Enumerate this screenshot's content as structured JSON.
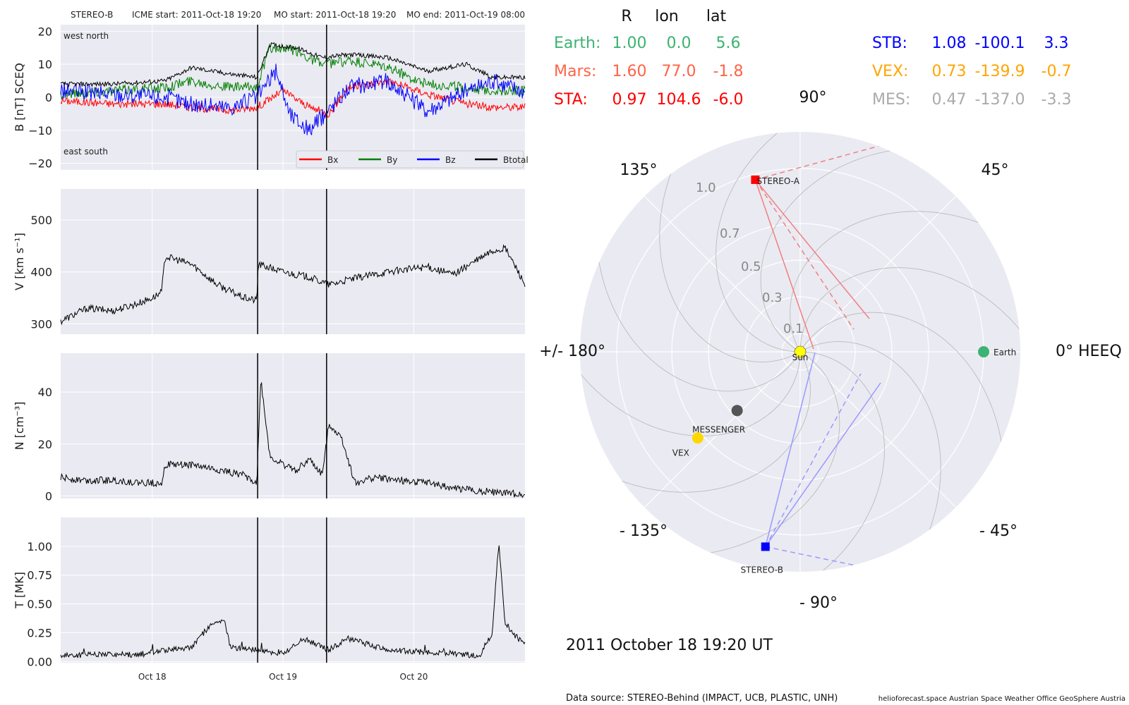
{
  "colors": {
    "panel_bg": "#EAEAF2",
    "grid": "#FFFFFF",
    "polar_grid": "#BBBBBB",
    "bx": "#FF0000",
    "by": "#008000",
    "bz": "#0000FF",
    "btotal": "#000000",
    "earth": "#3CB371",
    "mars": "#FF6347",
    "sta": "#FF0000",
    "stb": "#0000FF",
    "vex": "#FFA500",
    "vex_dot": "#FFD700",
    "mes": "#AAAAAA",
    "mes_dot": "#555555",
    "sun": "#FFFF00"
  },
  "header": {
    "spacecraft": "STEREO-B",
    "icme_start": "ICME start: 2011-Oct-18 19:20",
    "mo_start": "MO start: 2011-Oct-18 19:20",
    "mo_end": "MO end: 2011-Oct-19 08:00"
  },
  "positions_table": {
    "headers": [
      "R",
      "lon",
      "lat"
    ],
    "left_rows": [
      {
        "name": "Earth:",
        "R": "1.00",
        "lon": "0.0",
        "lat": "5.6",
        "color": "#3CB371"
      },
      {
        "name": "Mars:",
        "R": "1.60",
        "lon": "77.0",
        "lat": "-1.8",
        "color": "#FF6347"
      },
      {
        "name": "STA:",
        "R": "0.97",
        "lon": "104.6",
        "lat": "-6.0",
        "color": "#FF0000"
      }
    ],
    "right_rows": [
      {
        "name": "STB:",
        "R": "1.08",
        "lon": "-100.1",
        "lat": "3.3",
        "color": "#0000FF"
      },
      {
        "name": "VEX:",
        "R": "0.73",
        "lon": "-139.9",
        "lat": "-0.7",
        "color": "#FFA500"
      },
      {
        "name": "MES:",
        "R": "0.47",
        "lon": "-137.0",
        "lat": "-3.3",
        "color": "#AAAAAA"
      }
    ]
  },
  "chart_data": [
    {
      "type": "line",
      "ylabel": "B [nT] SCEQ",
      "ylim": [
        -22,
        22
      ],
      "yticks": [
        "20",
        "10",
        "0",
        "−10",
        "−20"
      ],
      "ytick_values": [
        20,
        10,
        0,
        -10,
        -20
      ],
      "x_range_days": [
        17.3,
        20.85
      ],
      "xticks": [
        "Oct 18",
        "Oct 19",
        "Oct 20"
      ],
      "xtick_values": [
        18.0,
        19.0,
        20.0
      ],
      "vlines_days": [
        18.806,
        19.333
      ],
      "corner_labels": [
        "west north",
        "east south"
      ],
      "legend": [
        "Bx",
        "By",
        "Bz",
        "Btotal"
      ],
      "legend_position": "lower right",
      "grid": true,
      "series": [
        {
          "name": "Bx",
          "x": [
            17.3,
            17.7,
            18.1,
            18.3,
            18.6,
            18.8,
            19.0,
            19.2,
            19.35,
            19.5,
            19.8,
            20.1,
            20.4,
            20.6,
            20.85
          ],
          "values": [
            -1,
            -2,
            -2,
            -3,
            -4,
            -3,
            2,
            -3,
            -5,
            3,
            5,
            1,
            -2,
            -3,
            -3
          ]
        },
        {
          "name": "By",
          "x": [
            17.3,
            17.7,
            18.1,
            18.3,
            18.6,
            18.8,
            18.9,
            19.1,
            19.3,
            19.5,
            19.8,
            20.1,
            20.4,
            20.6,
            20.85
          ],
          "values": [
            1,
            2,
            3,
            5,
            3,
            3,
            15,
            14,
            10,
            11,
            9,
            4,
            3,
            2,
            2
          ]
        },
        {
          "name": "Bz",
          "x": [
            17.3,
            17.7,
            18.1,
            18.3,
            18.6,
            18.8,
            18.95,
            19.05,
            19.2,
            19.3,
            19.5,
            19.8,
            20.1,
            20.4,
            20.6,
            20.85
          ],
          "values": [
            2,
            1,
            0,
            -2,
            -3,
            0,
            8,
            -5,
            -10,
            -6,
            3,
            5,
            -4,
            2,
            5,
            2
          ]
        },
        {
          "name": "Btotal",
          "x": [
            17.3,
            17.7,
            18.1,
            18.3,
            18.6,
            18.8,
            18.9,
            19.1,
            19.3,
            19.5,
            19.8,
            20.1,
            20.4,
            20.6,
            20.85
          ],
          "values": [
            4,
            4,
            5,
            9,
            7,
            6,
            16,
            15,
            12,
            13,
            12,
            8,
            10,
            6,
            6
          ]
        }
      ]
    },
    {
      "type": "line",
      "ylabel": "V [km s⁻¹]",
      "ylim": [
        280,
        560
      ],
      "yticks": [
        "500",
        "400",
        "300"
      ],
      "ytick_values": [
        500,
        400,
        300
      ],
      "x_range_days": [
        17.3,
        20.85
      ],
      "xticks": [
        "Oct 18",
        "Oct 19",
        "Oct 20"
      ],
      "xtick_values": [
        18.0,
        19.0,
        20.0
      ],
      "vlines_days": [
        18.806,
        19.333
      ],
      "grid": true,
      "series": [
        {
          "name": "V",
          "x": [
            17.3,
            17.5,
            17.7,
            17.9,
            18.0,
            18.07,
            18.1,
            18.3,
            18.5,
            18.7,
            18.8,
            18.81,
            19.0,
            19.2,
            19.35,
            19.5,
            19.8,
            20.1,
            20.3,
            20.4,
            20.6,
            20.7,
            20.8,
            20.85
          ],
          "values": [
            305,
            330,
            325,
            340,
            350,
            360,
            430,
            415,
            375,
            350,
            345,
            415,
            400,
            390,
            375,
            385,
            400,
            410,
            395,
            410,
            440,
            445,
            400,
            375
          ]
        }
      ]
    },
    {
      "type": "line",
      "ylabel": "N [cm⁻³]",
      "ylim": [
        -1,
        55
      ],
      "yticks": [
        "40",
        "20",
        "0"
      ],
      "ytick_values": [
        40,
        20,
        0
      ],
      "x_range_days": [
        17.3,
        20.85
      ],
      "xticks": [
        "Oct 18",
        "Oct 19",
        "Oct 20"
      ],
      "xtick_values": [
        18.0,
        19.0,
        20.0
      ],
      "vlines_days": [
        18.806,
        19.333
      ],
      "grid": true,
      "series": [
        {
          "name": "N",
          "x": [
            17.3,
            17.5,
            17.7,
            17.9,
            18.07,
            18.1,
            18.3,
            18.5,
            18.7,
            18.8,
            18.83,
            18.9,
            19.0,
            19.1,
            19.2,
            19.3,
            19.35,
            19.45,
            19.55,
            19.7,
            19.9,
            20.1,
            20.3,
            20.5,
            20.7,
            20.85
          ],
          "values": [
            7,
            6,
            6,
            5,
            5,
            12,
            12,
            10,
            8,
            5,
            45,
            15,
            12,
            10,
            14,
            8,
            28,
            22,
            5,
            7,
            6,
            5,
            3,
            2,
            1,
            0.5
          ]
        }
      ]
    },
    {
      "type": "line",
      "ylabel": "T [MK]",
      "ylim": [
        -0.01,
        1.25
      ],
      "yticks": [
        "1.00",
        "0.75",
        "0.50",
        "0.25",
        "0.00"
      ],
      "ytick_values": [
        1.0,
        0.75,
        0.5,
        0.25,
        0.0
      ],
      "x_range_days": [
        17.3,
        20.85
      ],
      "xticks": [
        "Oct 18",
        "Oct 19",
        "Oct 20"
      ],
      "xtick_values": [
        18.0,
        19.0,
        20.0
      ],
      "vlines_days": [
        18.806,
        19.333
      ],
      "grid": true,
      "series": [
        {
          "name": "T",
          "x": [
            17.3,
            17.6,
            17.9,
            18.1,
            18.3,
            18.43,
            18.55,
            18.6,
            18.8,
            19.0,
            19.15,
            19.35,
            19.5,
            19.8,
            20.1,
            20.3,
            20.5,
            20.6,
            20.65,
            20.7,
            20.85
          ],
          "values": [
            0.05,
            0.06,
            0.06,
            0.1,
            0.12,
            0.3,
            0.35,
            0.12,
            0.1,
            0.07,
            0.2,
            0.1,
            0.2,
            0.1,
            0.08,
            0.07,
            0.05,
            0.25,
            1.04,
            0.3,
            0.15
          ]
        }
      ]
    },
    {
      "type": "scatter",
      "subtype": "polar",
      "angle_labels": [
        "90°",
        "45°",
        "0° HEEQ",
        "- 45°",
        "- 90°",
        "- 135°",
        "+/- 180°",
        "135°"
      ],
      "radial_labels": [
        "1.0",
        "0.7",
        "0.5",
        "0.3",
        "0.1"
      ],
      "radial_values": [
        1.0,
        0.7,
        0.5,
        0.3,
        0.1
      ],
      "r_max": 1.2,
      "grid": true,
      "points": [
        {
          "name": "Sun",
          "r": 0.0,
          "lon": 0.0
        },
        {
          "name": "Earth",
          "r": 1.0,
          "lon": 0.0
        },
        {
          "name": "STEREO-A",
          "r": 0.97,
          "lon": 104.6
        },
        {
          "name": "STEREO-B",
          "r": 1.08,
          "lon": -100.1
        },
        {
          "name": "VEX",
          "r": 0.73,
          "lon": -139.9
        },
        {
          "name": "MESSENGER",
          "r": 0.47,
          "lon": -137.0
        }
      ]
    }
  ],
  "timestamp": "2011 October 18  19:20 UT",
  "footer": {
    "source": "Data source: STEREO-Behind (IMPACT, UCB, PLASTIC, UNH)",
    "credits": "helioforecast.space   Austrian Space Weather Office   GeoSphere Austria"
  }
}
